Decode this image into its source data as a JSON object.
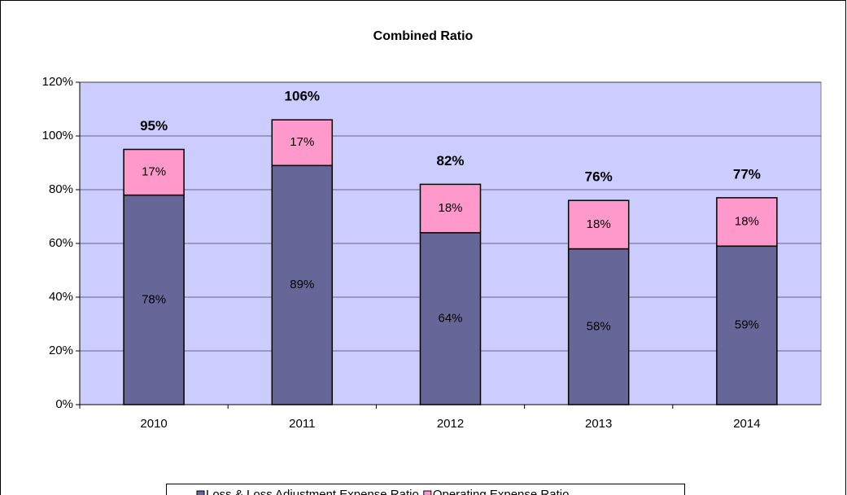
{
  "chart_data": {
    "type": "stacked_bar",
    "title": "Combined Ratio",
    "categories": [
      "2010",
      "2011",
      "2012",
      "2013",
      "2014"
    ],
    "series": [
      {
        "name": "Loss & Loss Adjustment Expense Ratio",
        "color": "#666699",
        "values": [
          78,
          89,
          64,
          58,
          59
        ],
        "value_labels": [
          "78%",
          "89%",
          "64%",
          "58%",
          "59%"
        ]
      },
      {
        "name": "Operating Expense Ratio",
        "color": "#ff99cc",
        "values": [
          17,
          17,
          18,
          18,
          18
        ],
        "value_labels": [
          "17%",
          "17%",
          "18%",
          "18%",
          "18%"
        ]
      }
    ],
    "totals": [
      95,
      106,
      82,
      76,
      77
    ],
    "total_labels": [
      "95%",
      "106%",
      "82%",
      "76%",
      "77%"
    ],
    "ylim": [
      0,
      120
    ],
    "yticks": [
      {
        "value": 0,
        "label": "0%"
      },
      {
        "value": 20,
        "label": "20%"
      },
      {
        "value": 40,
        "label": "40%"
      },
      {
        "value": 60,
        "label": "60%"
      },
      {
        "value": 80,
        "label": "80%"
      },
      {
        "value": 100,
        "label": "100%"
      },
      {
        "value": 120,
        "label": "120%"
      }
    ],
    "grid": true,
    "plot_background": "#ccccff",
    "legend": "bottom"
  }
}
